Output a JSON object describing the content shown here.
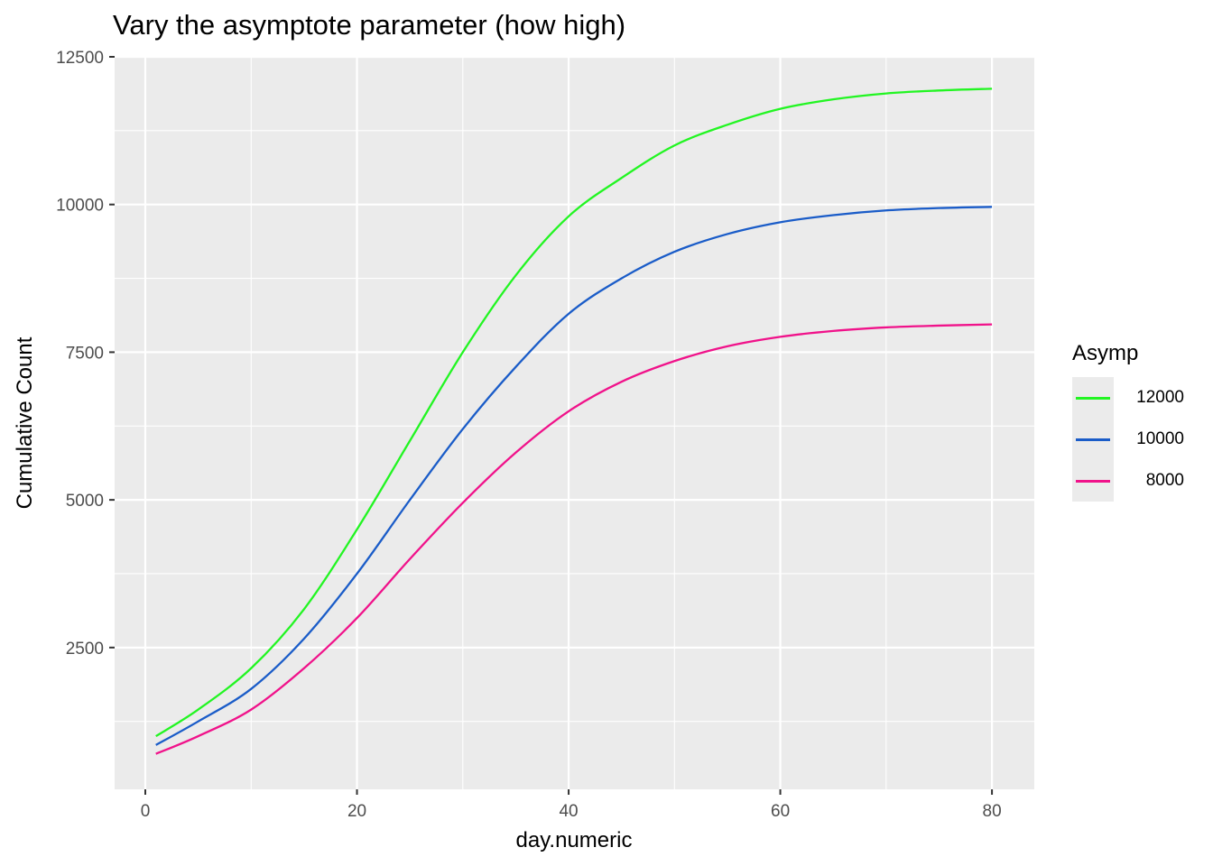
{
  "chart_data": {
    "type": "line",
    "title": "Vary the asymptote parameter (how high)",
    "xlabel": "day.numeric",
    "ylabel": "Cumulative Count",
    "xlim": [
      -2.9,
      84
    ],
    "ylim": [
      100,
      12500
    ],
    "x_ticks": [
      0,
      20,
      40,
      60,
      80
    ],
    "y_ticks": [
      2500,
      5000,
      7500,
      10000,
      12500
    ],
    "grid": true,
    "legend": {
      "title": "Asymp",
      "position": "right"
    },
    "series": [
      {
        "name": "12000",
        "color": "#22f522",
        "x": [
          1,
          5,
          10,
          15,
          20,
          25,
          30,
          35,
          40,
          45,
          50,
          55,
          60,
          65,
          70,
          75,
          80
        ],
        "values": [
          1000,
          1450,
          2150,
          3150,
          4500,
          6000,
          7500,
          8800,
          9800,
          10450,
          11000,
          11350,
          11620,
          11780,
          11880,
          11930,
          11960
        ]
      },
      {
        "name": "10000",
        "color": "#1a5cc8",
        "x": [
          1,
          5,
          10,
          15,
          20,
          25,
          30,
          35,
          40,
          45,
          50,
          55,
          60,
          65,
          70,
          75,
          80
        ],
        "values": [
          850,
          1250,
          1800,
          2650,
          3750,
          5000,
          6200,
          7250,
          8150,
          8750,
          9200,
          9500,
          9700,
          9820,
          9900,
          9940,
          9960
        ]
      },
      {
        "name": "8000",
        "color": "#f0128a",
        "x": [
          1,
          5,
          10,
          15,
          20,
          25,
          30,
          35,
          40,
          45,
          50,
          55,
          60,
          65,
          70,
          75,
          80
        ],
        "values": [
          700,
          1000,
          1450,
          2150,
          3000,
          4000,
          4950,
          5800,
          6500,
          7000,
          7350,
          7600,
          7760,
          7860,
          7920,
          7950,
          7970
        ]
      }
    ]
  }
}
